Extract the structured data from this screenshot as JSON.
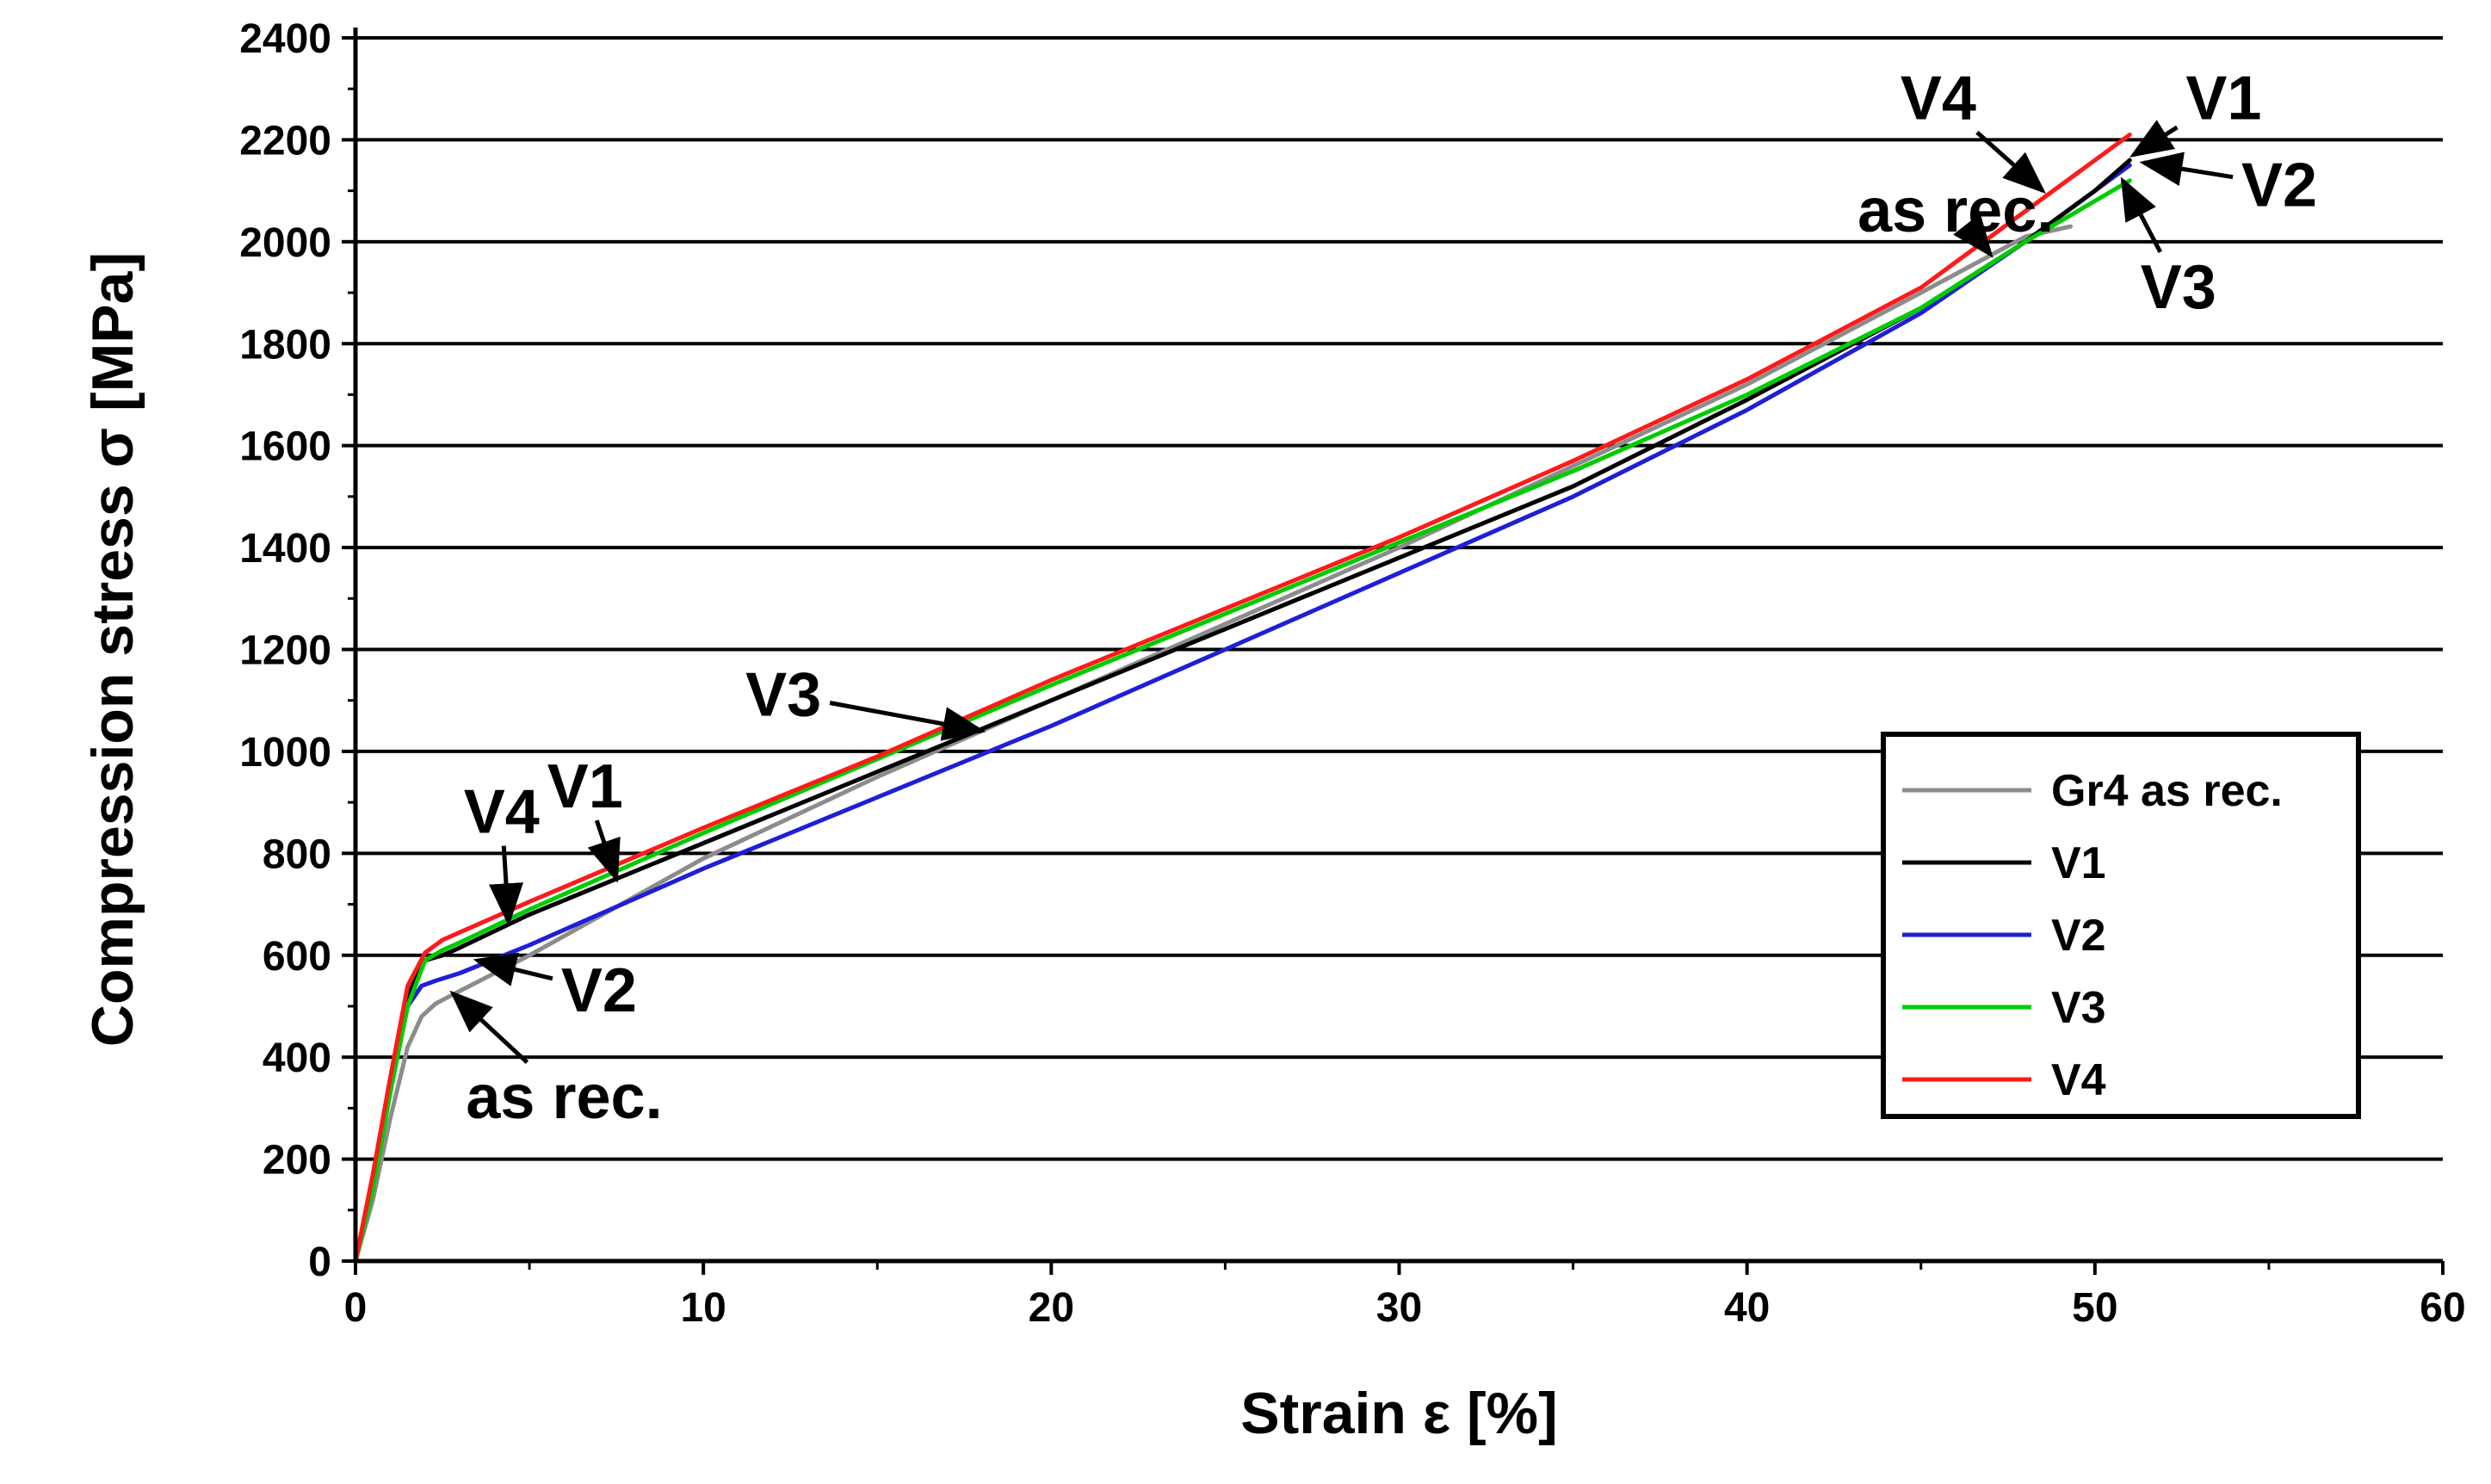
{
  "chart_data": {
    "type": "line",
    "xlabel": "Strain ε [%]",
    "ylabel": "Compression stress σ [MPa]",
    "xlim": [
      0,
      60
    ],
    "ylim": [
      0,
      2400
    ],
    "xticks": [
      0,
      10,
      20,
      30,
      40,
      50,
      60
    ],
    "yticks": [
      0,
      200,
      400,
      600,
      800,
      1000,
      1200,
      1400,
      1600,
      1800,
      2000,
      2200,
      2400
    ],
    "grid": "horizontal",
    "legend_position": "bottom-right",
    "series": [
      {
        "name": "Gr4 as rec.",
        "color": "#8c8c8c",
        "points": [
          [
            0,
            0
          ],
          [
            0.5,
            120
          ],
          [
            1.0,
            280
          ],
          [
            1.5,
            420
          ],
          [
            1.9,
            480
          ],
          [
            2.3,
            505
          ],
          [
            3,
            530
          ],
          [
            5,
            600
          ],
          [
            10,
            790
          ],
          [
            15,
            950
          ],
          [
            20,
            1100
          ],
          [
            25,
            1250
          ],
          [
            30,
            1400
          ],
          [
            35,
            1560
          ],
          [
            40,
            1720
          ],
          [
            45,
            1900
          ],
          [
            48,
            2010
          ],
          [
            49.3,
            2030
          ]
        ]
      },
      {
        "name": "V1",
        "color": "#000000",
        "points": [
          [
            0,
            0
          ],
          [
            0.5,
            160
          ],
          [
            1.0,
            350
          ],
          [
            1.5,
            520
          ],
          [
            2.0,
            590
          ],
          [
            2.5,
            600
          ],
          [
            3,
            615
          ],
          [
            5,
            680
          ],
          [
            10,
            820
          ],
          [
            15,
            960
          ],
          [
            20,
            1100
          ],
          [
            25,
            1240
          ],
          [
            30,
            1380
          ],
          [
            35,
            1520
          ],
          [
            40,
            1690
          ],
          [
            45,
            1870
          ],
          [
            48,
            2000
          ],
          [
            50,
            2100
          ],
          [
            51,
            2160
          ]
        ]
      },
      {
        "name": "V2",
        "color": "#1f1fd6",
        "points": [
          [
            0,
            0
          ],
          [
            0.5,
            150
          ],
          [
            1.0,
            340
          ],
          [
            1.5,
            500
          ],
          [
            1.9,
            540
          ],
          [
            2.3,
            550
          ],
          [
            3,
            565
          ],
          [
            5,
            620
          ],
          [
            10,
            770
          ],
          [
            15,
            910
          ],
          [
            20,
            1050
          ],
          [
            25,
            1200
          ],
          [
            30,
            1350
          ],
          [
            35,
            1500
          ],
          [
            40,
            1670
          ],
          [
            45,
            1860
          ],
          [
            48,
            2000
          ],
          [
            50,
            2100
          ],
          [
            51,
            2150
          ]
        ]
      },
      {
        "name": "V3",
        "color": "#00cc00",
        "points": [
          [
            0,
            0
          ],
          [
            0.5,
            140
          ],
          [
            1.0,
            330
          ],
          [
            1.5,
            500
          ],
          [
            2.0,
            590
          ],
          [
            2.5,
            610
          ],
          [
            3,
            625
          ],
          [
            5,
            690
          ],
          [
            10,
            840
          ],
          [
            15,
            985
          ],
          [
            20,
            1130
          ],
          [
            25,
            1270
          ],
          [
            30,
            1410
          ],
          [
            35,
            1550
          ],
          [
            40,
            1700
          ],
          [
            45,
            1870
          ],
          [
            48,
            2000
          ],
          [
            50,
            2080
          ],
          [
            51,
            2120
          ]
        ]
      },
      {
        "name": "V4",
        "color": "#ff1a1a",
        "points": [
          [
            0,
            0
          ],
          [
            0.5,
            170
          ],
          [
            1.0,
            360
          ],
          [
            1.5,
            540
          ],
          [
            2.0,
            605
          ],
          [
            2.5,
            630
          ],
          [
            3,
            645
          ],
          [
            5,
            705
          ],
          [
            10,
            850
          ],
          [
            15,
            990
          ],
          [
            20,
            1140
          ],
          [
            25,
            1280
          ],
          [
            30,
            1420
          ],
          [
            35,
            1570
          ],
          [
            40,
            1730
          ],
          [
            45,
            1910
          ],
          [
            48,
            2060
          ],
          [
            50,
            2160
          ],
          [
            51,
            2210
          ]
        ]
      }
    ],
    "annotations": [
      {
        "text": "V4",
        "data": [
          4.2,
          840
        ],
        "target": [
          4.4,
          665
        ]
      },
      {
        "text": "V1",
        "data": [
          6.6,
          890
        ],
        "target": [
          7.5,
          750
        ]
      },
      {
        "text": "V2",
        "data": [
          7.0,
          490
        ],
        "target": [
          3.5,
          590
        ]
      },
      {
        "text": "as rec.",
        "data": [
          6.0,
          280
        ],
        "target": [
          2.8,
          525
        ]
      },
      {
        "text": "V3",
        "data": [
          12.3,
          1070
        ],
        "target": [
          18.0,
          1040
        ]
      },
      {
        "text": "as rec.",
        "data": [
          46.0,
          2020
        ],
        "target": [
          47.0,
          1975
        ]
      },
      {
        "text": "V4",
        "data": [
          45.5,
          2240
        ],
        "target": [
          48.5,
          2100
        ]
      },
      {
        "text": "V1",
        "data": [
          53.7,
          2240
        ],
        "target": [
          51.1,
          2170
        ]
      },
      {
        "text": "V2",
        "data": [
          55.3,
          2070
        ],
        "target": [
          51.4,
          2155
        ]
      },
      {
        "text": "V3",
        "data": [
          52.4,
          1870
        ],
        "target": [
          50.8,
          2120
        ]
      }
    ]
  }
}
